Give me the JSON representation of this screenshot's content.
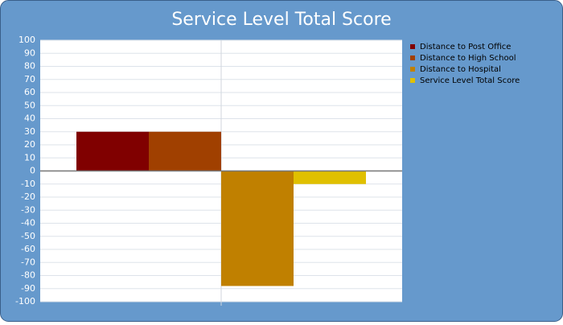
{
  "chart_data": {
    "type": "bar",
    "title": "Service Level Total Score",
    "categories": [
      null
    ],
    "series": [
      {
        "name": "Distance to Post Office",
        "color": "#800000",
        "values": [
          30
        ]
      },
      {
        "name": "Distance to High School",
        "color": "#a04000",
        "values": [
          30
        ]
      },
      {
        "name": "Distance to Hospital",
        "color": "#c08000",
        "values": [
          -88
        ]
      },
      {
        "name": "Service Level Total Score",
        "color": "#e0c000",
        "values": [
          -10
        ]
      }
    ],
    "ylim": [
      -100,
      100
    ],
    "yticks": [
      -100,
      -90,
      -80,
      -70,
      -60,
      -50,
      -40,
      -30,
      -20,
      -10,
      0,
      10,
      20,
      30,
      40,
      50,
      60,
      70,
      80,
      90,
      100
    ],
    "grid": true,
    "legend": "right"
  }
}
